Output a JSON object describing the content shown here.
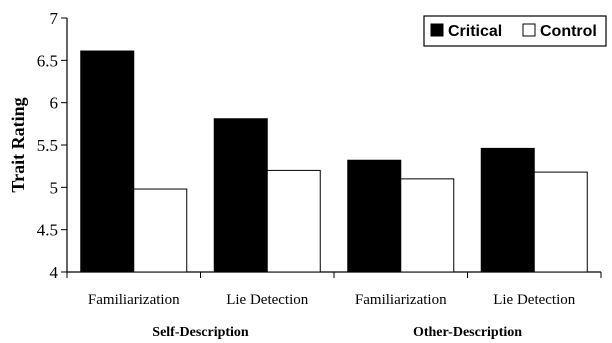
{
  "chart_data": {
    "type": "bar",
    "ylabel": "Trait Rating",
    "ylim": [
      4,
      7
    ],
    "yticks": [
      "4",
      "4.5",
      "5",
      "5.5",
      "6",
      "6.5",
      "7"
    ],
    "categories": [
      "Familiarization",
      "Lie Detection",
      "Familiarization",
      "Lie Detection"
    ],
    "groups": [
      {
        "label": "Self-Description",
        "categories": [
          0,
          1
        ]
      },
      {
        "label": "Other-Description",
        "categories": [
          2,
          3
        ]
      }
    ],
    "series": [
      {
        "name": "Critical",
        "color": "#000000",
        "values": [
          6.61,
          5.81,
          5.32,
          5.46
        ]
      },
      {
        "name": "Control",
        "color": "#ffffff",
        "values": [
          4.98,
          5.2,
          5.1,
          5.18
        ]
      }
    ],
    "legend": {
      "position": "top-right"
    },
    "grid": false
  }
}
